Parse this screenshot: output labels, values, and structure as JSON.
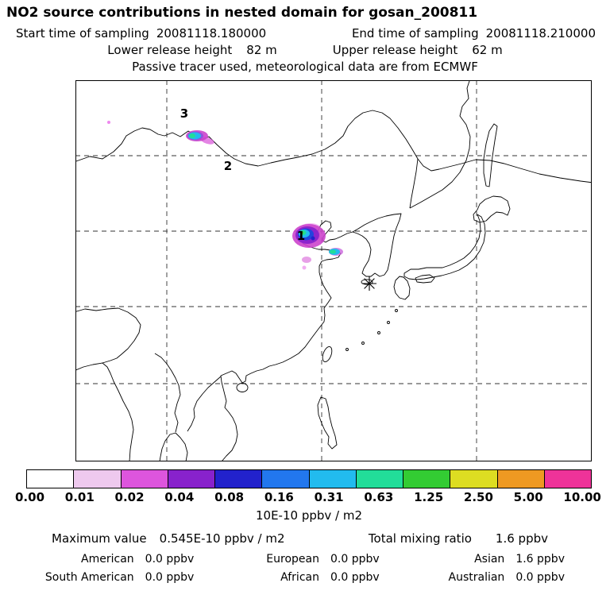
{
  "header": {
    "title": "NO2 source contributions in nested domain for gosan_200811",
    "sampling": {
      "start_label": "Start time of sampling",
      "start_value": "20081118.180000",
      "end_label": "End time of sampling",
      "end_value": "20081118.210000"
    },
    "release": {
      "lower_label": "Lower release height",
      "lower_value": "82 m",
      "upper_label": "Upper release height",
      "upper_value": "62 m"
    },
    "tracer_note": "Passive tracer used, meteorological data are from ECMWF"
  },
  "map": {
    "source_markers": [
      {
        "label": "1"
      },
      {
        "label": "2"
      },
      {
        "label": "3"
      }
    ],
    "receptor": "Gosan receptor star marker"
  },
  "chart_data": {
    "type": "heatmap",
    "title": "NO2 source contributions in nested domain for gosan_200811",
    "region": "East Asia map with dashed latitude/longitude gridlines, plumes near Lake Baikal (3), Mongolia (2) and Bohai/Beijing (1), receptor star near Jeju/Gosan",
    "colorbar": {
      "unit": "10E-10 ppbv / m2",
      "tick_labels": [
        "0.00",
        "0.01",
        "0.02",
        "0.04",
        "0.08",
        "0.16",
        "0.31",
        "0.63",
        "1.25",
        "2.50",
        "5.00",
        "10.00"
      ],
      "colors": [
        "#ffffff",
        "#eec9ee",
        "#dd55dd",
        "#8822cc",
        "#2222cc",
        "#2277ee",
        "#22bbee",
        "#22dd99",
        "#33cc33",
        "#dddd22",
        "#ee9922",
        "#ee3399"
      ]
    },
    "max_value": "0.545E-10 ppbv / m2",
    "total_mixing_ratio": "1.6 ppbv",
    "contributions_ppbv": {
      "American": 0.0,
      "European": 0.0,
      "Asian": 1.6,
      "South American": 0.0,
      "African": 0.0,
      "Australian": 0.0
    }
  },
  "footer": {
    "max_label": "Maximum value",
    "max_value": "0.545E-10 ppbv / m2",
    "total_label": "Total mixing ratio",
    "total_value": "1.6 ppbv",
    "regions": [
      {
        "name": "American",
        "value": "0.0 ppbv"
      },
      {
        "name": "European",
        "value": "0.0 ppbv"
      },
      {
        "name": "Asian",
        "value": "1.6 ppbv"
      },
      {
        "name": "South American",
        "value": "0.0 ppbv"
      },
      {
        "name": "African",
        "value": "0.0 ppbv"
      },
      {
        "name": "Australian",
        "value": "0.0 ppbv"
      }
    ]
  }
}
